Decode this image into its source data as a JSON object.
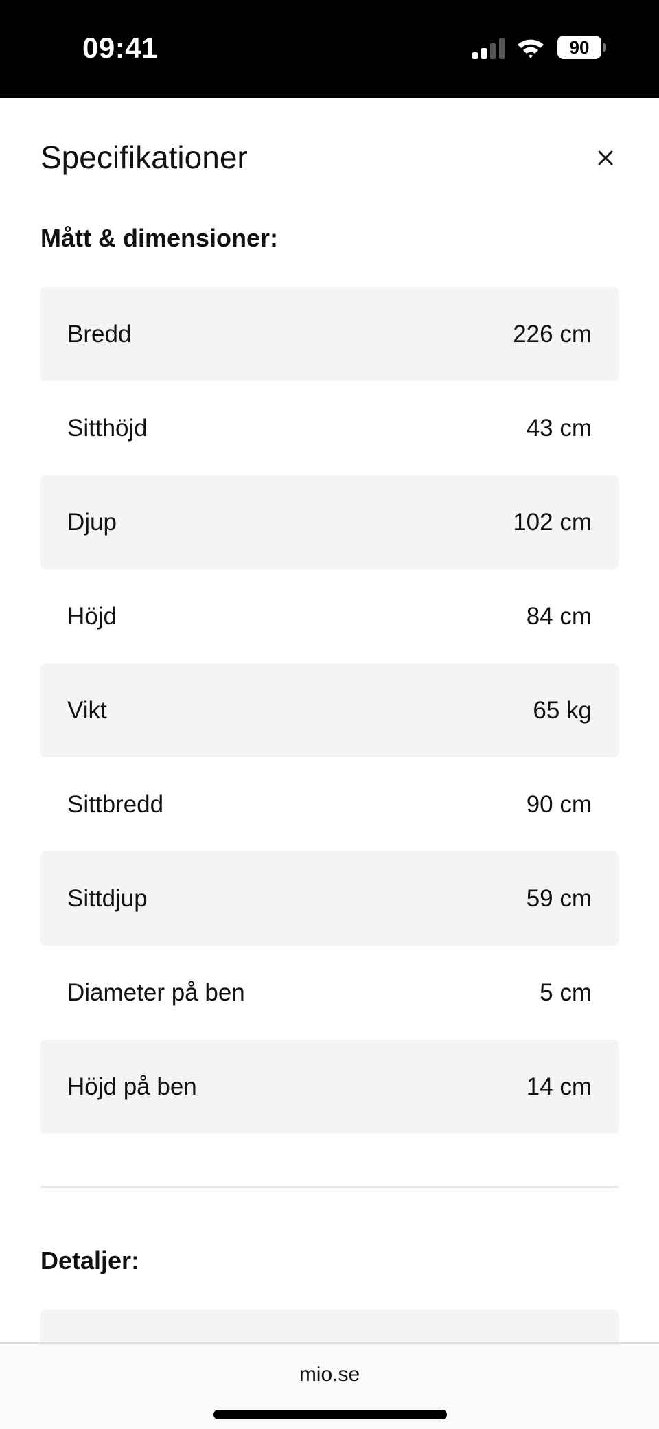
{
  "status_bar": {
    "time": "09:41",
    "battery": "90",
    "icons": [
      "signal-icon",
      "wifi-icon",
      "battery-icon"
    ]
  },
  "sheet": {
    "title": "Specifikationer",
    "close_icon": "close-icon",
    "dimensions_heading": "Mått & dimensioner:",
    "dimensions": [
      {
        "label": "Bredd",
        "value": "226 cm"
      },
      {
        "label": "Sitthöjd",
        "value": "43 cm"
      },
      {
        "label": "Djup",
        "value": "102 cm"
      },
      {
        "label": "Höjd",
        "value": "84 cm"
      },
      {
        "label": "Vikt",
        "value": "65 kg"
      },
      {
        "label": "Sittbredd",
        "value": "90 cm"
      },
      {
        "label": "Sittdjup",
        "value": "59 cm"
      },
      {
        "label": "Diameter på ben",
        "value": "5 cm"
      },
      {
        "label": "Höjd på ben",
        "value": "14 cm"
      }
    ],
    "details_heading": "Detaljer:"
  },
  "browser": {
    "url": "mio.se"
  }
}
